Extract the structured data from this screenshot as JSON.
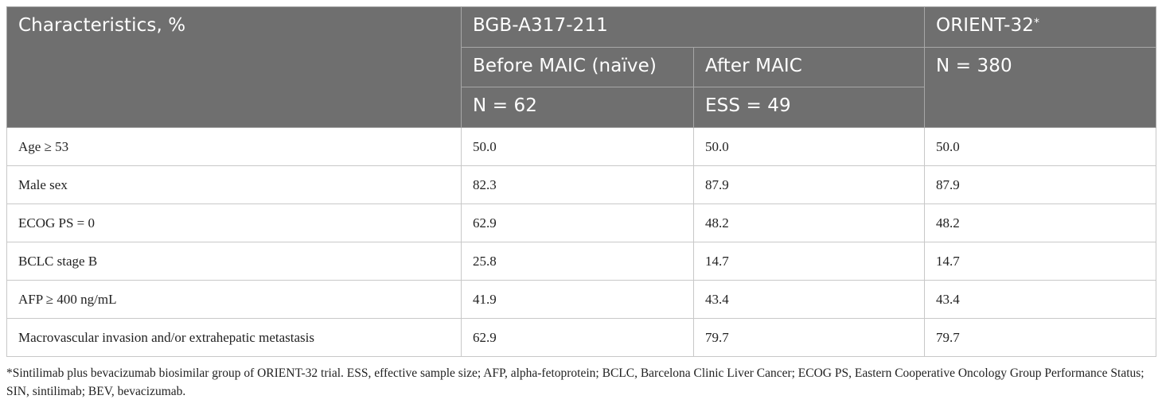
{
  "table": {
    "headers": {
      "characteristics": "Characteristics, %",
      "bgb_group": "BGB-A317-211",
      "orient_name": "ORIENT-32",
      "orient_mark": "*",
      "before_label": "Before MAIC (naïve)",
      "after_label": "After MAIC",
      "orient_n": "N = 380",
      "before_n": "N = 62",
      "after_ess": "ESS = 49"
    },
    "rows": [
      {
        "label": "Age ≥ 53",
        "before": "50.0",
        "after": "50.0",
        "orient": "50.0"
      },
      {
        "label": "Male sex",
        "before": "82.3",
        "after": "87.9",
        "orient": "87.9"
      },
      {
        "label": "ECOG PS = 0",
        "before": "62.9",
        "after": "48.2",
        "orient": "48.2"
      },
      {
        "label": "BCLC stage B",
        "before": "25.8",
        "after": "14.7",
        "orient": "14.7"
      },
      {
        "label": "AFP ≥ 400 ng/mL",
        "before": "41.9",
        "after": "43.4",
        "orient": "43.4"
      },
      {
        "label": "Macrovascular invasion and/or extrahepatic metastasis",
        "before": "62.9",
        "after": "79.7",
        "orient": "79.7"
      }
    ]
  },
  "footnote": "*Sintilimab plus bevacizumab biosimilar group of ORIENT-32 trial. ESS, effective sample size; AFP, alpha-fetoprotein; BCLC, Barcelona Clinic Liver Cancer; ECOG PS, Eastern Cooperative Oncology Group Performance Status; SIN, sintilimab; BEV, bevacizumab."
}
